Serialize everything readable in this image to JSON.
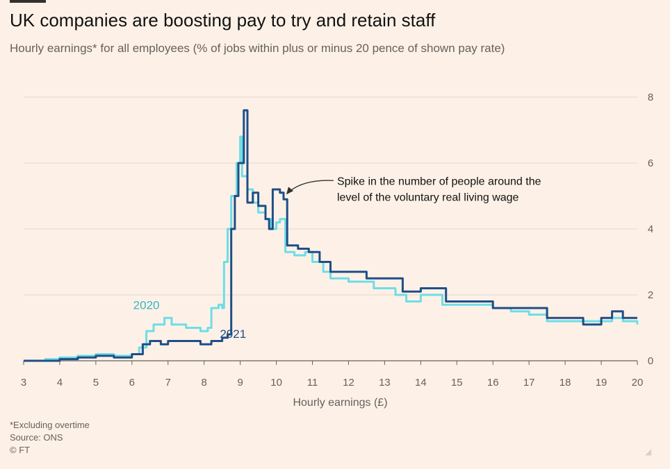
{
  "header": {
    "title": "UK companies are boosting pay to try and retain staff",
    "subtitle": "Hourly earnings* for all employees (% of jobs within plus or minus 20 pence of shown pay rate)"
  },
  "footer": {
    "note": "*Excluding overtime",
    "source": "Source: ONS",
    "credit": "© FT"
  },
  "colors": {
    "series_2020": "#6fdde6",
    "series_2021": "#1f4e87",
    "grid": "#e3d6cc",
    "axis": "#66605c",
    "label_2020": "#39b6c4",
    "label_2021": "#1f4e87"
  },
  "chart_data": {
    "type": "line",
    "title": "UK companies are boosting pay to try and retain staff",
    "xlabel": "Hourly earnings (£)",
    "ylabel": "",
    "xlim": [
      3,
      20
    ],
    "ylim": [
      0,
      8
    ],
    "x_ticks": [
      "3",
      "4",
      "5",
      "6",
      "7",
      "8",
      "9",
      "10",
      "11",
      "12",
      "13",
      "14",
      "15",
      "16",
      "17",
      "18",
      "19",
      "20"
    ],
    "y_ticks": [
      "0",
      "2",
      "4",
      "6",
      "8"
    ],
    "grid": true,
    "y_axis_side": "right",
    "series": [
      {
        "name": "2020",
        "points": [
          [
            3,
            0
          ],
          [
            3.6,
            0.05
          ],
          [
            4,
            0.1
          ],
          [
            4.5,
            0.15
          ],
          [
            5,
            0.2
          ],
          [
            5.5,
            0.15
          ],
          [
            6,
            0.2
          ],
          [
            6.2,
            0.4
          ],
          [
            6.4,
            0.9
          ],
          [
            6.6,
            1.1
          ],
          [
            6.9,
            1.3
          ],
          [
            7.1,
            1.1
          ],
          [
            7.5,
            1.0
          ],
          [
            7.9,
            0.9
          ],
          [
            8.1,
            1.0
          ],
          [
            8.2,
            1.6
          ],
          [
            8.4,
            1.7
          ],
          [
            8.5,
            1.6
          ],
          [
            8.55,
            3.0
          ],
          [
            8.65,
            4.0
          ],
          [
            8.75,
            5.0
          ],
          [
            8.9,
            6.0
          ],
          [
            9.0,
            6.8
          ],
          [
            9.05,
            5.6
          ],
          [
            9.2,
            5.2
          ],
          [
            9.35,
            4.8
          ],
          [
            9.5,
            4.5
          ],
          [
            9.7,
            4.3
          ],
          [
            9.85,
            4.0
          ],
          [
            10.0,
            4.2
          ],
          [
            10.1,
            4.3
          ],
          [
            10.25,
            3.3
          ],
          [
            10.5,
            3.2
          ],
          [
            10.8,
            3.3
          ],
          [
            11.0,
            3.0
          ],
          [
            11.3,
            2.7
          ],
          [
            11.5,
            2.5
          ],
          [
            12.0,
            2.4
          ],
          [
            12.3,
            2.4
          ],
          [
            12.7,
            2.2
          ],
          [
            13.0,
            2.2
          ],
          [
            13.3,
            2.0
          ],
          [
            13.6,
            1.8
          ],
          [
            14.0,
            2.0
          ],
          [
            14.3,
            2.0
          ],
          [
            14.6,
            1.7
          ],
          [
            15.0,
            1.7
          ],
          [
            15.5,
            1.7
          ],
          [
            16.0,
            1.6
          ],
          [
            16.5,
            1.5
          ],
          [
            17.0,
            1.4
          ],
          [
            17.5,
            1.2
          ],
          [
            18.0,
            1.2
          ],
          [
            18.5,
            1.2
          ],
          [
            19.0,
            1.2
          ],
          [
            19.3,
            1.3
          ],
          [
            19.6,
            1.2
          ],
          [
            20.0,
            1.1
          ]
        ]
      },
      {
        "name": "2021",
        "points": [
          [
            3,
            0
          ],
          [
            3.5,
            0
          ],
          [
            4,
            0.05
          ],
          [
            4.5,
            0.1
          ],
          [
            5,
            0.15
          ],
          [
            5.5,
            0.1
          ],
          [
            6,
            0.2
          ],
          [
            6.3,
            0.5
          ],
          [
            6.5,
            0.6
          ],
          [
            6.8,
            0.5
          ],
          [
            7.0,
            0.6
          ],
          [
            7.5,
            0.6
          ],
          [
            7.9,
            0.5
          ],
          [
            8.2,
            0.6
          ],
          [
            8.5,
            0.7
          ],
          [
            8.65,
            0.8
          ],
          [
            8.75,
            4.0
          ],
          [
            8.85,
            5.0
          ],
          [
            8.95,
            6.0
          ],
          [
            9.1,
            7.6
          ],
          [
            9.2,
            4.8
          ],
          [
            9.35,
            5.1
          ],
          [
            9.5,
            4.7
          ],
          [
            9.7,
            4.3
          ],
          [
            9.8,
            4.0
          ],
          [
            9.9,
            5.2
          ],
          [
            10.1,
            5.1
          ],
          [
            10.2,
            4.9
          ],
          [
            10.3,
            3.5
          ],
          [
            10.6,
            3.4
          ],
          [
            10.9,
            3.3
          ],
          [
            11.2,
            3.0
          ],
          [
            11.5,
            2.7
          ],
          [
            12.0,
            2.7
          ],
          [
            12.5,
            2.5
          ],
          [
            13.0,
            2.5
          ],
          [
            13.5,
            2.1
          ],
          [
            14.0,
            2.2
          ],
          [
            14.3,
            2.2
          ],
          [
            14.7,
            1.8
          ],
          [
            15.0,
            1.8
          ],
          [
            15.5,
            1.8
          ],
          [
            16.0,
            1.6
          ],
          [
            16.5,
            1.6
          ],
          [
            16.9,
            1.6
          ],
          [
            17.0,
            1.6
          ],
          [
            17.5,
            1.3
          ],
          [
            18.0,
            1.3
          ],
          [
            18.5,
            1.1
          ],
          [
            19.0,
            1.3
          ],
          [
            19.3,
            1.5
          ],
          [
            19.6,
            1.3
          ],
          [
            20.0,
            1.3
          ]
        ]
      }
    ],
    "series_labels": [
      {
        "text": "2020",
        "x": 6.4,
        "y": 1.4
      },
      {
        "text": "2021",
        "x": 8.8,
        "y": 0.7
      }
    ],
    "annotation": {
      "lines": [
        "Spike in the number of people around the",
        "level of the voluntary real living wage"
      ],
      "x": 10.2,
      "y": 5.3
    }
  }
}
